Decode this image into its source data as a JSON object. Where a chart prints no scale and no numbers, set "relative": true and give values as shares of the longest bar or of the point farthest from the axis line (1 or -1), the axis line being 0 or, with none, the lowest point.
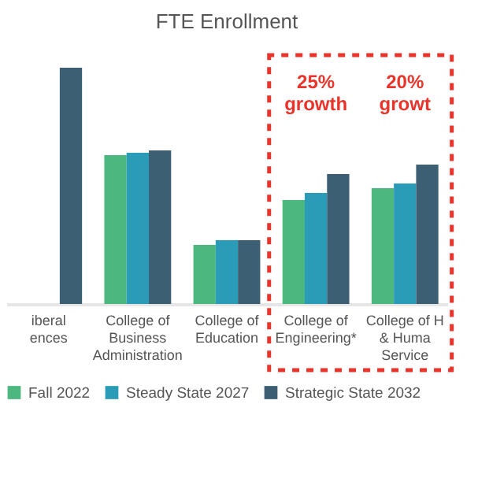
{
  "chart_data": {
    "type": "bar",
    "title": "FTE Enrollment",
    "relative": true,
    "categories": [
      "iberal\nences",
      "College of\nBusiness\nAdministration",
      "College of\nEducation",
      "College of\nEngineering*",
      "College of H\n& Huma\nService"
    ],
    "series": [
      {
        "name": "Fall 2022",
        "color": "#4cb77f",
        "values": [
          null,
          0.63,
          0.25,
          0.44,
          0.49
        ]
      },
      {
        "name": "Steady State 2027",
        "color": "#2a9cb8",
        "values": [
          null,
          0.64,
          0.27,
          0.47,
          0.51
        ]
      },
      {
        "name": "Strategic State 2032",
        "color": "#3d5f73",
        "values": [
          1,
          0.65,
          0.27,
          0.55,
          0.59
        ]
      }
    ],
    "annotations": [
      "25%\ngrowth",
      "20%\ngrowt"
    ],
    "legend": "bottom"
  }
}
